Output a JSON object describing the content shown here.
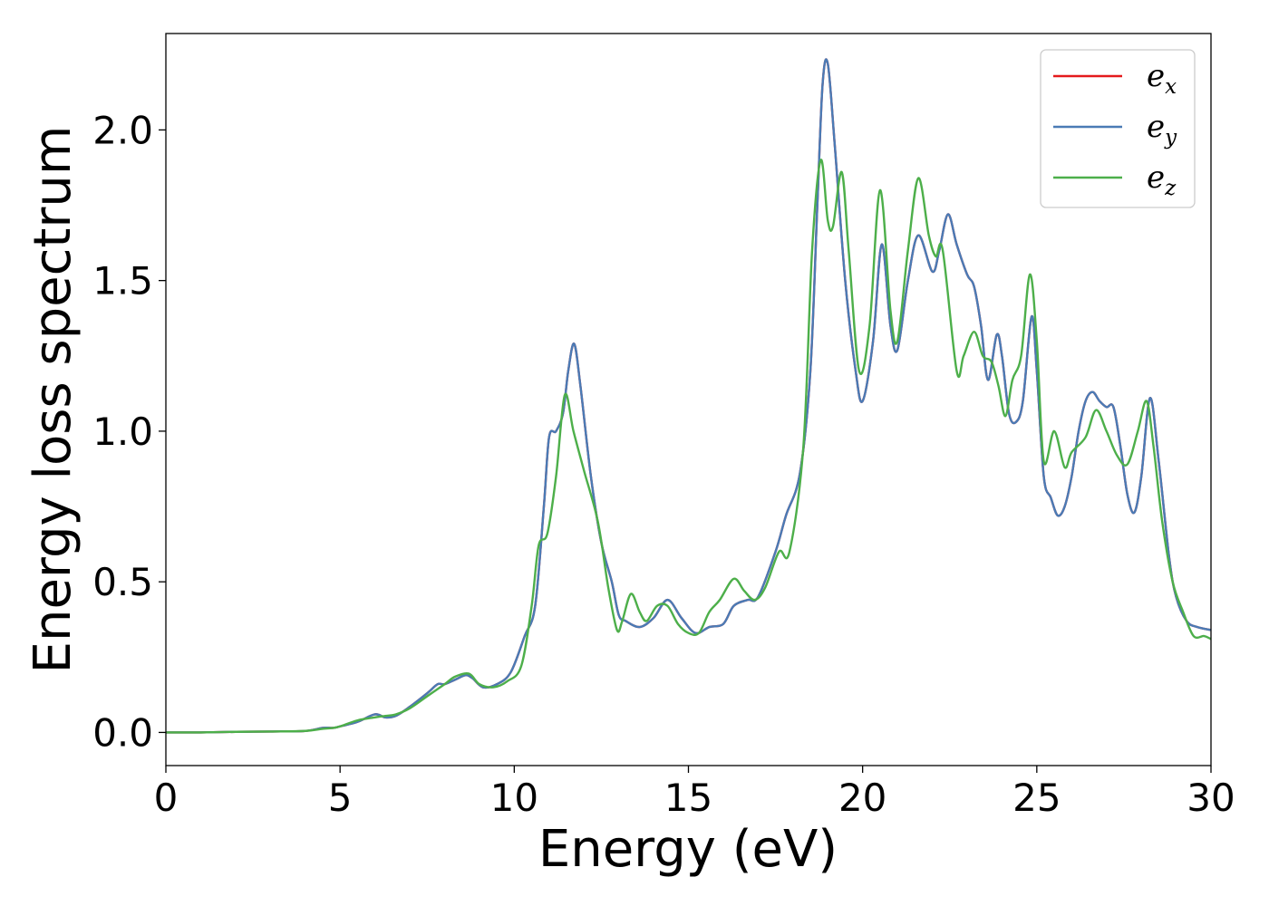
{
  "chart_data": {
    "type": "line",
    "xlabel": "Energy (eV)",
    "ylabel": "Energy loss spectrum",
    "xlim": [
      0,
      30
    ],
    "ylim": [
      -0.11,
      2.32
    ],
    "x_ticks": [
      0,
      5,
      10,
      15,
      20,
      25,
      30
    ],
    "x_tick_labels": [
      "0",
      "5",
      "10",
      "15",
      "20",
      "25",
      "30"
    ],
    "y_ticks": [
      0.0,
      0.5,
      1.0,
      1.5,
      2.0
    ],
    "y_tick_labels": [
      "0.0",
      "0.5",
      "1.0",
      "1.5",
      "2.0"
    ],
    "grid": false,
    "legend_position": "top-right",
    "series": [
      {
        "name": "e_x",
        "legend_base": "e",
        "legend_sub": "x",
        "color": "#e41a1c",
        "x": [
          0,
          1,
          2,
          3,
          4,
          4.5,
          4.8,
          5,
          5.5,
          6,
          6.3,
          6.6,
          7,
          7.5,
          7.8,
          8,
          8.3,
          8.6,
          8.8,
          9.1,
          9.5,
          9.9,
          10.3,
          10.6,
          10.85,
          11.0,
          11.2,
          11.4,
          11.55,
          11.72,
          11.9,
          12.2,
          12.5,
          12.8,
          13.0,
          13.2,
          13.6,
          14.0,
          14.4,
          14.8,
          15.2,
          15.6,
          16.0,
          16.3,
          16.7,
          17.0,
          17.5,
          17.8,
          18.2,
          18.5,
          18.7,
          18.85,
          19.0,
          19.2,
          19.5,
          19.8,
          20.0,
          20.3,
          20.55,
          20.8,
          21.0,
          21.3,
          21.6,
          22.0,
          22.2,
          22.45,
          22.7,
          23.0,
          23.2,
          23.4,
          23.6,
          23.85,
          24.0,
          24.2,
          24.4,
          24.6,
          24.85,
          25.0,
          25.2,
          25.4,
          25.6,
          25.8,
          26.0,
          26.2,
          26.4,
          26.6,
          26.8,
          27.0,
          27.2,
          27.4,
          27.6,
          27.8,
          28.0,
          28.25,
          28.5,
          28.8,
          29.0,
          29.3,
          29.6,
          30.0
        ],
        "y": [
          0.0,
          0.0,
          0.002,
          0.003,
          0.005,
          0.015,
          0.015,
          0.02,
          0.035,
          0.06,
          0.05,
          0.055,
          0.085,
          0.13,
          0.16,
          0.16,
          0.175,
          0.19,
          0.18,
          0.15,
          0.16,
          0.2,
          0.32,
          0.42,
          0.75,
          0.98,
          1.0,
          1.06,
          1.2,
          1.29,
          1.15,
          0.85,
          0.63,
          0.5,
          0.39,
          0.37,
          0.35,
          0.38,
          0.44,
          0.38,
          0.33,
          0.35,
          0.36,
          0.42,
          0.44,
          0.45,
          0.6,
          0.72,
          0.86,
          1.2,
          1.75,
          2.15,
          2.22,
          1.95,
          1.5,
          1.2,
          1.1,
          1.3,
          1.62,
          1.35,
          1.27,
          1.5,
          1.65,
          1.53,
          1.6,
          1.72,
          1.62,
          1.52,
          1.48,
          1.35,
          1.17,
          1.32,
          1.25,
          1.06,
          1.03,
          1.1,
          1.38,
          1.2,
          0.85,
          0.78,
          0.72,
          0.75,
          0.85,
          1.0,
          1.1,
          1.13,
          1.1,
          1.08,
          1.08,
          0.95,
          0.79,
          0.73,
          0.85,
          1.11,
          0.9,
          0.58,
          0.45,
          0.37,
          0.35,
          0.34
        ]
      },
      {
        "name": "e_y",
        "legend_base": "e",
        "legend_sub": "y",
        "color": "#4a7bb5",
        "x": [
          0,
          1,
          2,
          3,
          4,
          4.5,
          4.8,
          5,
          5.5,
          6,
          6.3,
          6.6,
          7,
          7.5,
          7.8,
          8,
          8.3,
          8.6,
          8.8,
          9.1,
          9.5,
          9.9,
          10.3,
          10.6,
          10.85,
          11.0,
          11.2,
          11.4,
          11.55,
          11.72,
          11.9,
          12.2,
          12.5,
          12.8,
          13.0,
          13.2,
          13.6,
          14.0,
          14.4,
          14.8,
          15.2,
          15.6,
          16.0,
          16.3,
          16.7,
          17.0,
          17.5,
          17.8,
          18.2,
          18.5,
          18.7,
          18.85,
          19.0,
          19.2,
          19.5,
          19.8,
          20.0,
          20.3,
          20.55,
          20.8,
          21.0,
          21.3,
          21.6,
          22.0,
          22.2,
          22.45,
          22.7,
          23.0,
          23.2,
          23.4,
          23.6,
          23.85,
          24.0,
          24.2,
          24.4,
          24.6,
          24.85,
          25.0,
          25.2,
          25.4,
          25.6,
          25.8,
          26.0,
          26.2,
          26.4,
          26.6,
          26.8,
          27.0,
          27.2,
          27.4,
          27.6,
          27.8,
          28.0,
          28.25,
          28.5,
          28.8,
          29.0,
          29.3,
          29.6,
          30.0
        ],
        "y": [
          0.0,
          0.0,
          0.002,
          0.003,
          0.005,
          0.015,
          0.015,
          0.02,
          0.035,
          0.06,
          0.05,
          0.055,
          0.085,
          0.13,
          0.16,
          0.16,
          0.175,
          0.19,
          0.18,
          0.15,
          0.16,
          0.2,
          0.32,
          0.42,
          0.75,
          0.98,
          1.0,
          1.06,
          1.2,
          1.29,
          1.15,
          0.85,
          0.63,
          0.5,
          0.39,
          0.37,
          0.35,
          0.38,
          0.44,
          0.38,
          0.33,
          0.35,
          0.36,
          0.42,
          0.44,
          0.45,
          0.6,
          0.72,
          0.86,
          1.2,
          1.75,
          2.15,
          2.22,
          1.95,
          1.5,
          1.2,
          1.1,
          1.3,
          1.62,
          1.35,
          1.27,
          1.5,
          1.65,
          1.53,
          1.6,
          1.72,
          1.62,
          1.52,
          1.48,
          1.35,
          1.17,
          1.32,
          1.25,
          1.06,
          1.03,
          1.1,
          1.38,
          1.2,
          0.85,
          0.78,
          0.72,
          0.75,
          0.85,
          1.0,
          1.1,
          1.13,
          1.1,
          1.08,
          1.08,
          0.95,
          0.79,
          0.73,
          0.85,
          1.11,
          0.9,
          0.58,
          0.45,
          0.37,
          0.35,
          0.34
        ]
      },
      {
        "name": "e_z",
        "legend_base": "e",
        "legend_sub": "z",
        "color": "#4daf4a",
        "x": [
          0,
          1,
          2,
          3,
          4,
          4.5,
          4.8,
          5,
          5.5,
          6,
          6.3,
          6.6,
          7,
          7.5,
          8,
          8.3,
          8.7,
          9.0,
          9.4,
          9.8,
          10.2,
          10.5,
          10.7,
          10.95,
          11.2,
          11.45,
          11.7,
          12.0,
          12.4,
          12.7,
          12.95,
          13.1,
          13.35,
          13.6,
          13.8,
          14.1,
          14.4,
          14.7,
          15.0,
          15.3,
          15.6,
          15.9,
          16.3,
          16.6,
          16.9,
          17.2,
          17.6,
          17.9,
          18.3,
          18.55,
          18.8,
          19.0,
          19.15,
          19.4,
          19.6,
          19.9,
          20.2,
          20.5,
          20.8,
          21.0,
          21.3,
          21.6,
          21.9,
          22.1,
          22.3,
          22.7,
          22.9,
          23.2,
          23.45,
          23.7,
          23.9,
          24.1,
          24.3,
          24.55,
          24.8,
          25.0,
          25.2,
          25.5,
          25.8,
          26.0,
          26.4,
          26.7,
          27.0,
          27.3,
          27.6,
          27.9,
          28.15,
          28.35,
          28.6,
          28.9,
          29.2,
          29.5,
          29.8,
          30.0
        ],
        "y": [
          0.0,
          0.0,
          0.002,
          0.003,
          0.005,
          0.012,
          0.015,
          0.02,
          0.04,
          0.05,
          0.055,
          0.06,
          0.08,
          0.12,
          0.16,
          0.185,
          0.195,
          0.16,
          0.15,
          0.17,
          0.22,
          0.42,
          0.62,
          0.66,
          0.85,
          1.12,
          1.0,
          0.87,
          0.7,
          0.48,
          0.34,
          0.37,
          0.46,
          0.4,
          0.37,
          0.42,
          0.42,
          0.36,
          0.33,
          0.33,
          0.4,
          0.44,
          0.51,
          0.47,
          0.44,
          0.48,
          0.6,
          0.6,
          0.95,
          1.6,
          1.9,
          1.7,
          1.68,
          1.86,
          1.6,
          1.2,
          1.35,
          1.8,
          1.4,
          1.3,
          1.6,
          1.84,
          1.65,
          1.58,
          1.6,
          1.2,
          1.25,
          1.33,
          1.25,
          1.23,
          1.15,
          1.05,
          1.17,
          1.25,
          1.52,
          1.3,
          0.9,
          1.0,
          0.88,
          0.93,
          0.98,
          1.07,
          1.0,
          0.92,
          0.89,
          1.0,
          1.1,
          0.95,
          0.7,
          0.5,
          0.4,
          0.32,
          0.32,
          0.31
        ]
      }
    ]
  }
}
